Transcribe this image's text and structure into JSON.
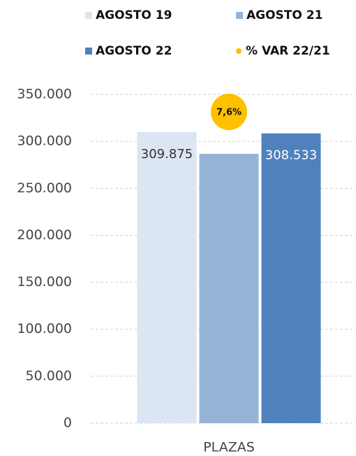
{
  "chart_data": {
    "type": "bar",
    "categories": [
      "PLAZAS"
    ],
    "series": [
      {
        "name": "AGOSTO 19",
        "color": "#dce6f2",
        "values": [
          309875
        ],
        "value_labels": [
          "309.875"
        ],
        "label_color": "#333333"
      },
      {
        "name": "AGOSTO 21",
        "color": "#95b3d7",
        "values": [
          286700
        ]
      },
      {
        "name": "AGOSTO 22",
        "color": "#4f81bd",
        "values": [
          308533
        ],
        "value_labels": [
          "308.533"
        ],
        "label_color": "#ffffff"
      }
    ],
    "var_series": {
      "name": "% VAR 22/21",
      "color": "#ffc000",
      "values": [
        7.6
      ],
      "value_labels": [
        "7,6%"
      ]
    },
    "ylim": [
      0,
      350000
    ],
    "yticks": [
      0,
      {
        "value": 50000,
        "label": "50.000"
      },
      {
        "value": 100000,
        "label": "100.000"
      },
      {
        "value": 150000,
        "label": "150.000"
      },
      {
        "value": 200000,
        "label": "200.000"
      },
      {
        "value": 250000,
        "label": "250.000"
      },
      {
        "value": 300000,
        "label": "300.000"
      },
      {
        "value": 350000,
        "label": "350.000"
      }
    ],
    "grid": true
  }
}
